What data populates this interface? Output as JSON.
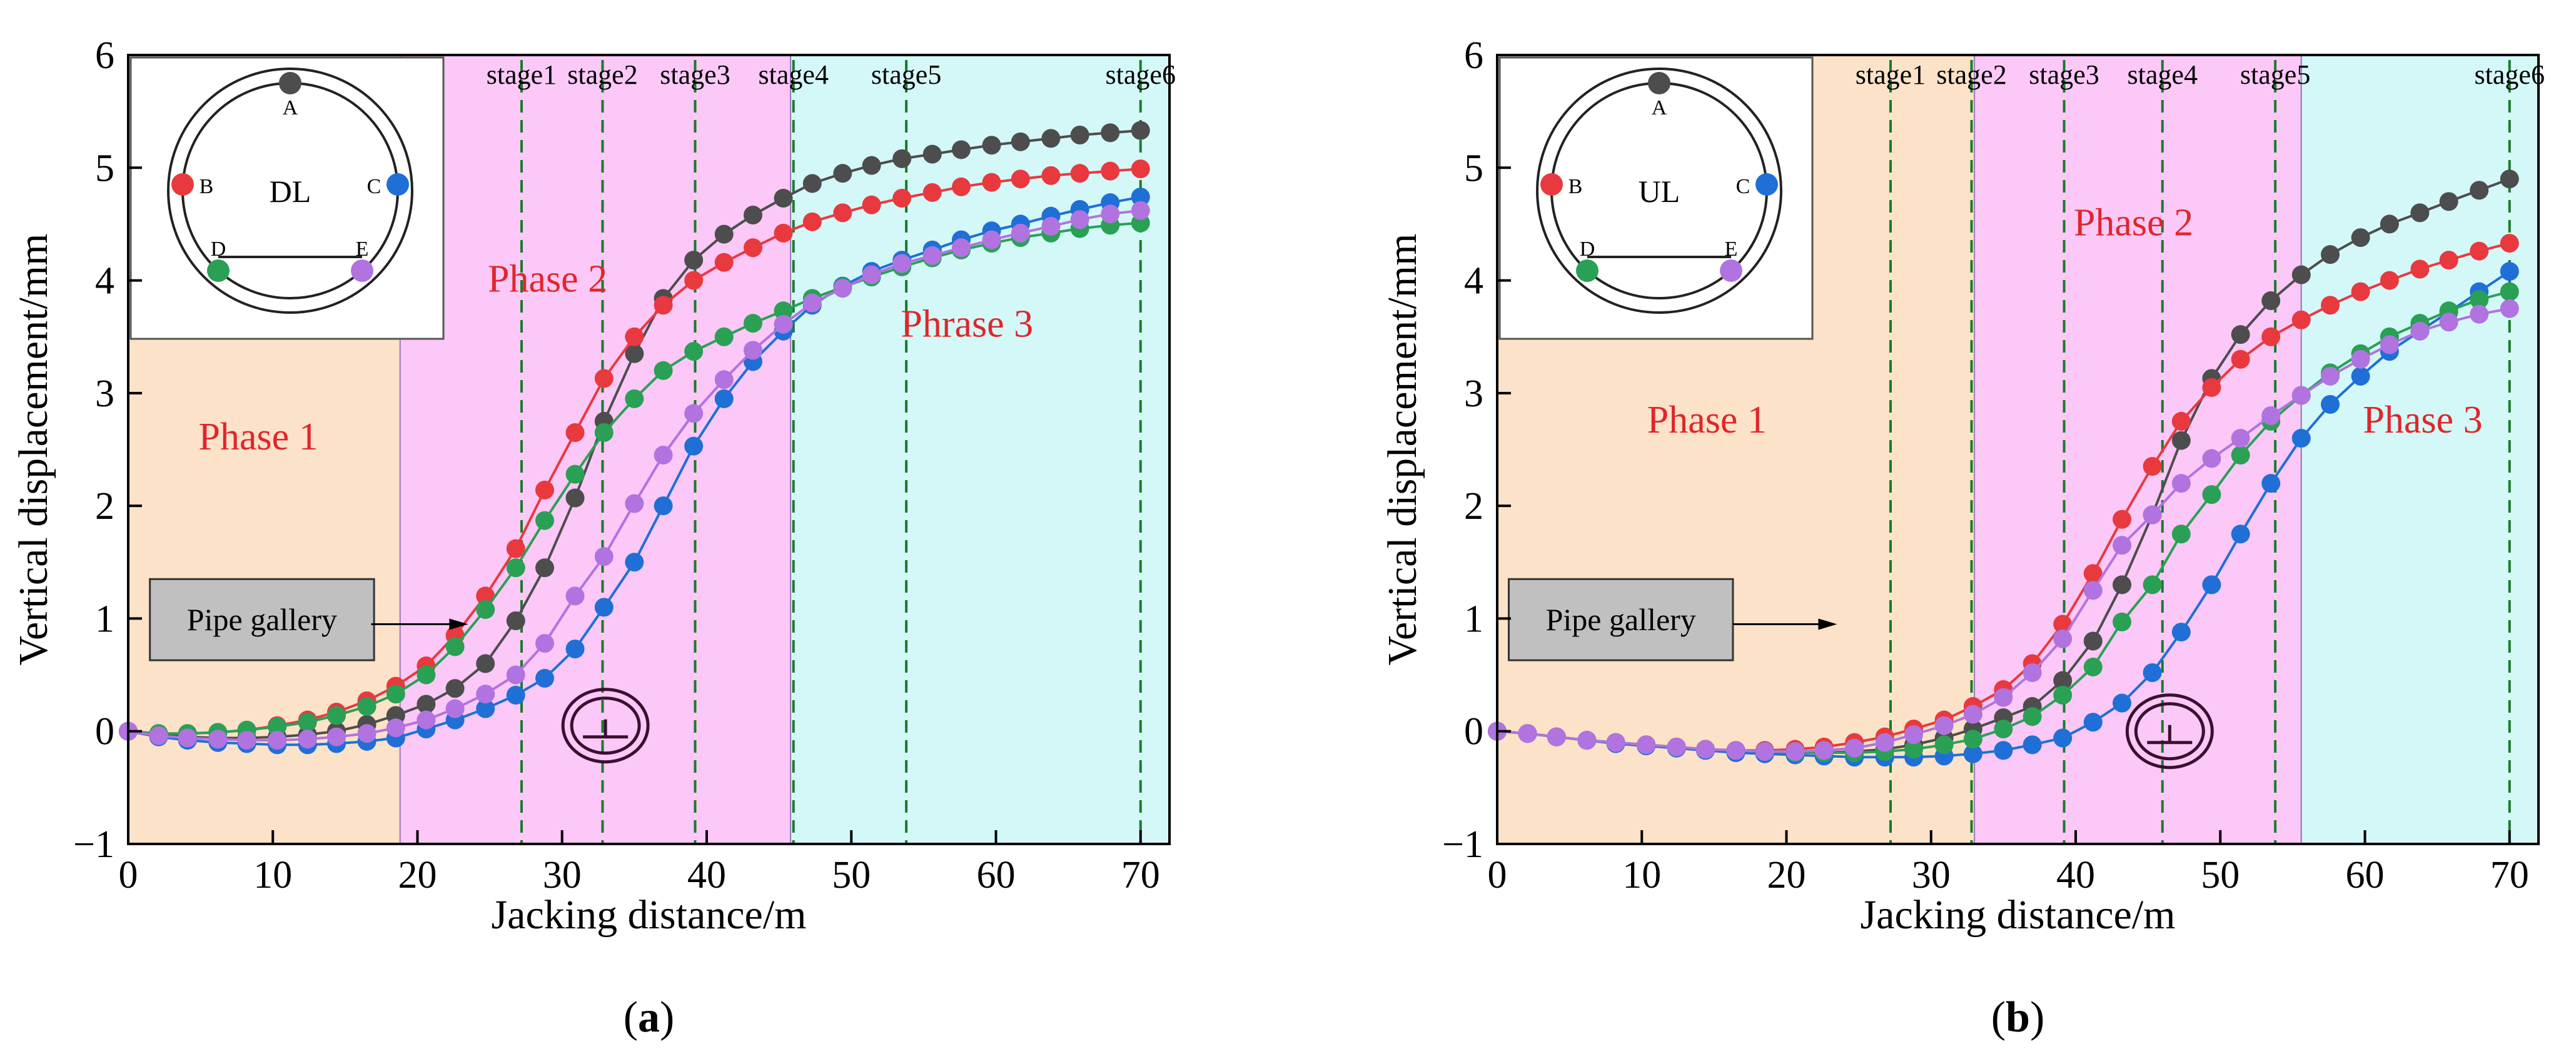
{
  "colors": {
    "A": "#4d4d4d",
    "B": "#e8393f",
    "C": "#1f6fd6",
    "D": "#2aa055",
    "E": "#b073e0",
    "phase1_fill": "#fbe2c8",
    "phase2_fill": "#fbc8f7",
    "phase3_fill": "#d4f8f8",
    "stage_line": "#1a7a2a",
    "phase_text": "#e0262b",
    "pipe_box": "#c0c0c0"
  },
  "panels": [
    {
      "caption_letter": "a",
      "inset_center": "DL",
      "inset_points": [
        "A",
        "B",
        "C",
        "D",
        "E"
      ],
      "pipe_label": "Pipe gallery",
      "phases": [
        {
          "label": "Phase 1",
          "from": 0,
          "to": 18.8,
          "fill": "phase1"
        },
        {
          "label": "Phase 2",
          "from": 18.8,
          "to": 45.8,
          "fill": "phase2"
        },
        {
          "label": "Phrase 3",
          "from": 45.8,
          "to": 72,
          "fill": "phase3"
        }
      ],
      "stages": [
        {
          "label": "stage1",
          "x": 27.2
        },
        {
          "label": "stage2",
          "x": 32.8
        },
        {
          "label": "stage3",
          "x": 39.2
        },
        {
          "label": "stage4",
          "x": 46.0
        },
        {
          "label": "stage5",
          "x": 53.8
        },
        {
          "label": "stage6",
          "x": 70.0
        }
      ],
      "gallery_symbol_x": 33.0,
      "gallery_symbol_y": 0.05
    },
    {
      "caption_letter": "b",
      "inset_center": "UL",
      "inset_points": [
        "A",
        "B",
        "C",
        "D",
        "E"
      ],
      "pipe_label": "Pipe gallery",
      "phases": [
        {
          "label": "Phase 1",
          "from": 0,
          "to": 33.0,
          "fill": "phase1"
        },
        {
          "label": "Phase 2",
          "from": 33.0,
          "to": 55.6,
          "fill": "phase2"
        },
        {
          "label": "Phase 3",
          "from": 55.6,
          "to": 72,
          "fill": "phase3"
        }
      ],
      "stages": [
        {
          "label": "stage1",
          "x": 27.2
        },
        {
          "label": "stage2",
          "x": 32.8
        },
        {
          "label": "stage3",
          "x": 39.2
        },
        {
          "label": "stage4",
          "x": 46.0
        },
        {
          "label": "stage5",
          "x": 53.8
        },
        {
          "label": "stage6",
          "x": 70.0
        }
      ],
      "gallery_symbol_x": 46.5,
      "gallery_symbol_y": 0.0
    }
  ],
  "chart_data": [
    {
      "type": "line",
      "title": "(a)",
      "xlabel": "Jacking distance/m",
      "ylabel": "Vertical displacement/mm",
      "xlim": [
        0,
        72
      ],
      "ylim": [
        -1,
        6
      ],
      "xticks": [
        0,
        10,
        20,
        30,
        40,
        50,
        60,
        70
      ],
      "yticks": [
        -1,
        0,
        1,
        2,
        3,
        4,
        5,
        6
      ],
      "x": [
        0,
        2.1,
        4.1,
        6.2,
        8.2,
        10.3,
        12.4,
        14.4,
        16.5,
        18.5,
        20.6,
        22.6,
        24.7,
        26.8,
        28.8,
        30.9,
        32.9,
        35.0,
        37.0,
        39.1,
        41.2,
        43.2,
        45.3,
        47.3,
        49.4,
        51.4,
        53.5,
        55.6,
        57.6,
        59.7,
        61.7,
        63.8,
        65.8,
        67.9,
        70.0
      ],
      "series": [
        {
          "name": "A",
          "values": [
            0.0,
            -0.03,
            -0.05,
            -0.06,
            -0.06,
            -0.05,
            -0.03,
            0.0,
            0.06,
            0.14,
            0.24,
            0.38,
            0.6,
            0.98,
            1.45,
            2.07,
            2.75,
            3.35,
            3.84,
            4.18,
            4.41,
            4.58,
            4.73,
            4.86,
            4.95,
            5.02,
            5.08,
            5.12,
            5.16,
            5.2,
            5.23,
            5.26,
            5.29,
            5.31,
            5.33
          ]
        },
        {
          "name": "B",
          "values": [
            0.0,
            -0.02,
            -0.02,
            -0.01,
            0.01,
            0.05,
            0.1,
            0.17,
            0.27,
            0.4,
            0.58,
            0.85,
            1.2,
            1.62,
            2.14,
            2.65,
            3.13,
            3.5,
            3.78,
            4.0,
            4.16,
            4.29,
            4.42,
            4.52,
            4.6,
            4.67,
            4.73,
            4.78,
            4.83,
            4.87,
            4.9,
            4.93,
            4.95,
            4.97,
            4.99
          ]
        },
        {
          "name": "C",
          "values": [
            0.0,
            -0.05,
            -0.08,
            -0.1,
            -0.11,
            -0.12,
            -0.12,
            -0.11,
            -0.09,
            -0.06,
            0.02,
            0.1,
            0.2,
            0.32,
            0.47,
            0.73,
            1.1,
            1.5,
            2.0,
            2.53,
            2.95,
            3.28,
            3.55,
            3.78,
            3.95,
            4.08,
            4.18,
            4.27,
            4.36,
            4.44,
            4.5,
            4.57,
            4.63,
            4.69,
            4.74
          ]
        },
        {
          "name": "D",
          "values": [
            0.0,
            -0.02,
            -0.02,
            -0.01,
            0.01,
            0.04,
            0.08,
            0.14,
            0.22,
            0.33,
            0.5,
            0.75,
            1.08,
            1.45,
            1.87,
            2.28,
            2.65,
            2.95,
            3.2,
            3.37,
            3.5,
            3.62,
            3.73,
            3.84,
            3.94,
            4.03,
            4.12,
            4.2,
            4.27,
            4.33,
            4.38,
            4.42,
            4.46,
            4.49,
            4.51
          ]
        },
        {
          "name": "E",
          "values": [
            0.0,
            -0.04,
            -0.06,
            -0.07,
            -0.08,
            -0.08,
            -0.07,
            -0.05,
            -0.02,
            0.03,
            0.1,
            0.2,
            0.33,
            0.5,
            0.78,
            1.2,
            1.55,
            2.02,
            2.45,
            2.82,
            3.12,
            3.38,
            3.61,
            3.8,
            3.93,
            4.05,
            4.15,
            4.22,
            4.29,
            4.36,
            4.42,
            4.48,
            4.54,
            4.59,
            4.62
          ]
        }
      ]
    },
    {
      "type": "line",
      "title": "(b)",
      "xlabel": "Jacking distance/m",
      "ylabel": "Vertical displacement/mm",
      "xlim": [
        0,
        72
      ],
      "ylim": [
        -1,
        6
      ],
      "xticks": [
        0,
        10,
        20,
        30,
        40,
        50,
        60,
        70
      ],
      "yticks": [
        -1,
        0,
        1,
        2,
        3,
        4,
        5,
        6
      ],
      "x": [
        0,
        2.1,
        4.1,
        6.2,
        8.2,
        10.3,
        12.4,
        14.4,
        16.5,
        18.5,
        20.6,
        22.6,
        24.7,
        26.8,
        28.8,
        30.9,
        32.9,
        35.0,
        37.0,
        39.1,
        41.2,
        43.2,
        45.3,
        47.3,
        49.4,
        51.4,
        53.5,
        55.6,
        57.6,
        59.7,
        61.7,
        63.8,
        65.8,
        67.9,
        70.0
      ],
      "series": [
        {
          "name": "A",
          "values": [
            0.0,
            -0.02,
            -0.05,
            -0.08,
            -0.1,
            -0.12,
            -0.14,
            -0.16,
            -0.17,
            -0.18,
            -0.19,
            -0.19,
            -0.18,
            -0.16,
            -0.12,
            -0.06,
            0.02,
            0.12,
            0.22,
            0.45,
            0.8,
            1.3,
            1.92,
            2.58,
            3.13,
            3.52,
            3.82,
            4.05,
            4.23,
            4.38,
            4.5,
            4.6,
            4.7,
            4.8,
            4.9
          ]
        },
        {
          "name": "B",
          "values": [
            0.0,
            -0.02,
            -0.05,
            -0.08,
            -0.1,
            -0.12,
            -0.14,
            -0.16,
            -0.17,
            -0.17,
            -0.16,
            -0.14,
            -0.1,
            -0.05,
            0.02,
            0.1,
            0.22,
            0.37,
            0.6,
            0.95,
            1.4,
            1.88,
            2.35,
            2.75,
            3.05,
            3.3,
            3.5,
            3.65,
            3.78,
            3.9,
            4.0,
            4.1,
            4.18,
            4.26,
            4.33
          ]
        },
        {
          "name": "C",
          "values": [
            0.0,
            -0.02,
            -0.05,
            -0.08,
            -0.11,
            -0.13,
            -0.15,
            -0.17,
            -0.19,
            -0.2,
            -0.21,
            -0.22,
            -0.23,
            -0.23,
            -0.23,
            -0.22,
            -0.2,
            -0.17,
            -0.12,
            -0.06,
            0.08,
            0.25,
            0.52,
            0.88,
            1.3,
            1.75,
            2.2,
            2.6,
            2.9,
            3.15,
            3.37,
            3.55,
            3.72,
            3.9,
            4.08
          ]
        },
        {
          "name": "D",
          "values": [
            0.0,
            -0.02,
            -0.05,
            -0.08,
            -0.1,
            -0.12,
            -0.14,
            -0.16,
            -0.17,
            -0.18,
            -0.19,
            -0.19,
            -0.19,
            -0.18,
            -0.16,
            -0.12,
            -0.07,
            0.02,
            0.13,
            0.32,
            0.57,
            0.97,
            1.3,
            1.75,
            2.1,
            2.45,
            2.75,
            2.98,
            3.18,
            3.35,
            3.5,
            3.62,
            3.73,
            3.83,
            3.9
          ]
        },
        {
          "name": "E",
          "values": [
            0.0,
            -0.02,
            -0.05,
            -0.08,
            -0.1,
            -0.12,
            -0.14,
            -0.16,
            -0.17,
            -0.18,
            -0.18,
            -0.17,
            -0.15,
            -0.1,
            -0.03,
            0.05,
            0.15,
            0.3,
            0.52,
            0.82,
            1.25,
            1.65,
            1.92,
            2.2,
            2.42,
            2.6,
            2.8,
            2.98,
            3.15,
            3.3,
            3.43,
            3.55,
            3.63,
            3.7,
            3.75
          ]
        }
      ]
    }
  ]
}
